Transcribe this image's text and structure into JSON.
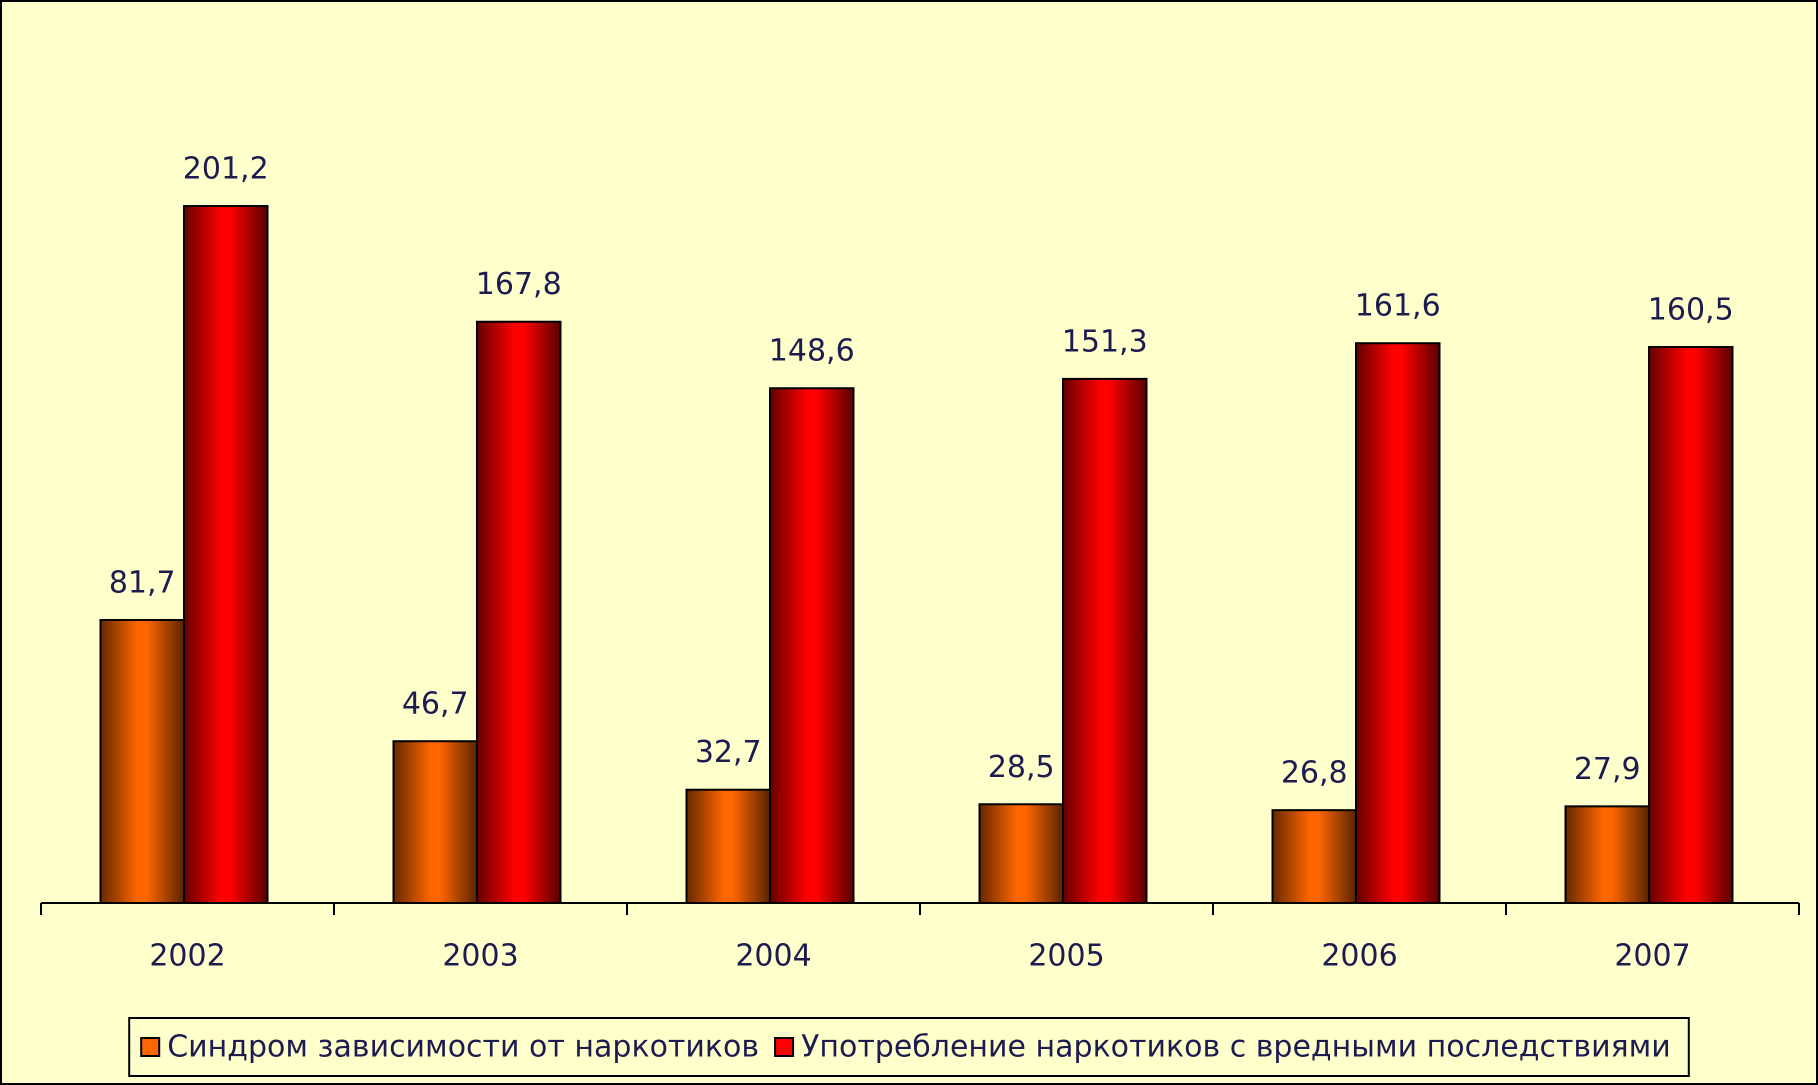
{
  "chart_data": {
    "type": "bar",
    "categories": [
      "2002",
      "2003",
      "2004",
      "2005",
      "2006",
      "2007"
    ],
    "series": [
      {
        "name": "Синдром зависимости от наркотиков",
        "color": "#ff6600",
        "values": [
          81.7,
          46.7,
          32.7,
          28.5,
          26.8,
          27.9
        ],
        "value_labels": [
          "81,7",
          "46,7",
          "32,7",
          "28,5",
          "26,8",
          "27,9"
        ]
      },
      {
        "name": "Употребление наркотиков с вредными последствиями",
        "color": "#ff0000",
        "values": [
          201.2,
          167.8,
          148.6,
          151.3,
          161.6,
          160.5
        ],
        "value_labels": [
          "201,2",
          "167,8",
          "148,6",
          "151,3",
          "161,6",
          "160,5"
        ]
      }
    ],
    "ylim": [
      0,
      250
    ],
    "legend": "bottom"
  }
}
